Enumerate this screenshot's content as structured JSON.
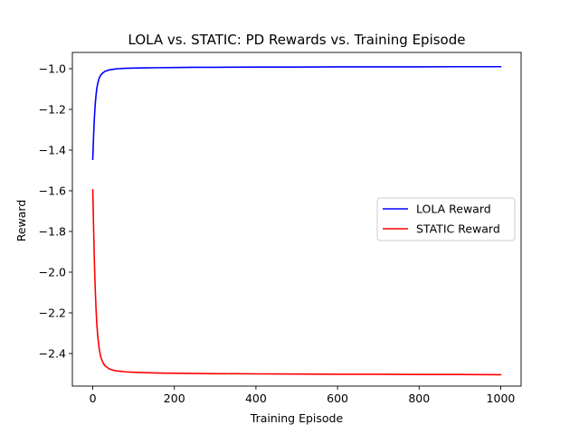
{
  "chart_data": {
    "type": "line",
    "title": "LOLA vs. STATIC: PD Rewards vs. Training Episode",
    "xlabel": "Training Episode",
    "ylabel": "Reward",
    "xlim": [
      -50,
      1050
    ],
    "ylim": [
      -2.56,
      -0.92
    ],
    "xticks": [
      0,
      200,
      400,
      600,
      800,
      1000
    ],
    "xtick_labels": [
      "0",
      "200",
      "400",
      "600",
      "800",
      "1000"
    ],
    "yticks": [
      -1.0,
      -1.2,
      -1.4,
      -1.6,
      -1.8,
      -2.0,
      -2.2,
      -2.4
    ],
    "ytick_labels": [
      "−1.0",
      "−1.2",
      "−1.4",
      "−1.6",
      "−1.8",
      "−2.0",
      "−2.2",
      "−2.4"
    ],
    "grid": false,
    "legend_position": "center-right",
    "x": [
      0,
      2,
      4,
      6,
      8,
      10,
      13,
      16,
      20,
      25,
      30,
      40,
      50,
      60,
      80,
      100,
      130,
      160,
      200,
      250,
      300,
      400,
      500,
      600,
      700,
      800,
      900,
      1000
    ],
    "series": [
      {
        "name": "LOLA Reward",
        "color": "#0000ff",
        "values": [
          -1.445,
          -1.33,
          -1.24,
          -1.175,
          -1.13,
          -1.095,
          -1.065,
          -1.045,
          -1.03,
          -1.02,
          -1.013,
          -1.006,
          -1.003,
          -1.0,
          -0.998,
          -0.997,
          -0.996,
          -0.995,
          -0.994,
          -0.993,
          -0.993,
          -0.992,
          -0.992,
          -0.991,
          -0.991,
          -0.991,
          -0.99,
          -0.99
        ]
      },
      {
        "name": "STATIC Reward",
        "color": "#ff0000",
        "values": [
          -1.595,
          -1.78,
          -1.95,
          -2.08,
          -2.18,
          -2.26,
          -2.33,
          -2.38,
          -2.42,
          -2.445,
          -2.46,
          -2.475,
          -2.482,
          -2.486,
          -2.49,
          -2.492,
          -2.494,
          -2.496,
          -2.497,
          -2.498,
          -2.499,
          -2.5,
          -2.501,
          -2.502,
          -2.502,
          -2.503,
          -2.503,
          -2.504
        ]
      }
    ]
  }
}
